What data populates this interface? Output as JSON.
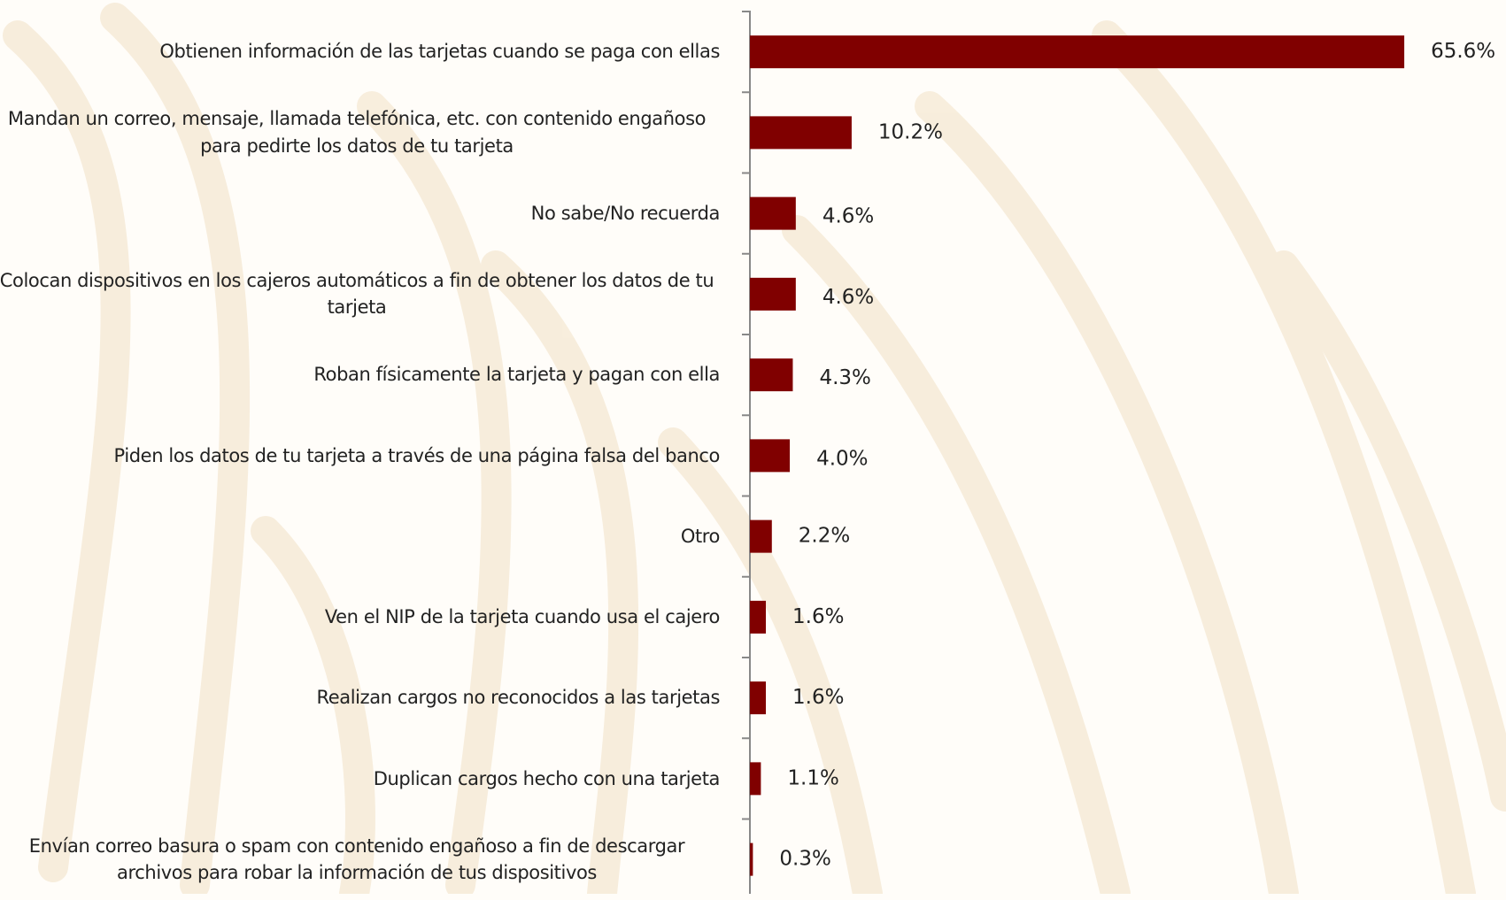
{
  "chart_data": {
    "type": "barh",
    "categories": [
      "Obtienen información de las tarjetas cuando se paga con ellas",
      "Mandan un correo, mensaje, llamada telefónica, etc. con contenido engañoso para pedirte los datos de tu tarjeta",
      "No sabe/No recuerda",
      "Colocan dispositivos en los cajeros automáticos a fin de obtener los datos de tu tarjeta",
      "Roban físicamente la tarjeta y pagan con ella",
      "Piden los datos de tu tarjeta a través de una página falsa del banco",
      "Otro",
      "Ven el NIP de la tarjeta cuando usa el cajero",
      "Realizan cargos no reconocidos a las tarjetas",
      "Duplican cargos hecho con una tarjeta",
      "Envían correo basura o spam con contenido engañoso a fin de descargar archivos para robar la información de tus dispositivos"
    ],
    "values": [
      65.6,
      10.2,
      4.6,
      4.6,
      4.3,
      4.0,
      2.2,
      1.6,
      1.6,
      1.1,
      0.3
    ],
    "value_labels": [
      "65.6%",
      "10.2%",
      "4.6%",
      "4.6%",
      "4.3%",
      "4.0%",
      "2.2%",
      "1.6%",
      "1.6%",
      "1.1%",
      "0.3%"
    ],
    "color": "#800000",
    "xlim": [
      0,
      75
    ]
  }
}
